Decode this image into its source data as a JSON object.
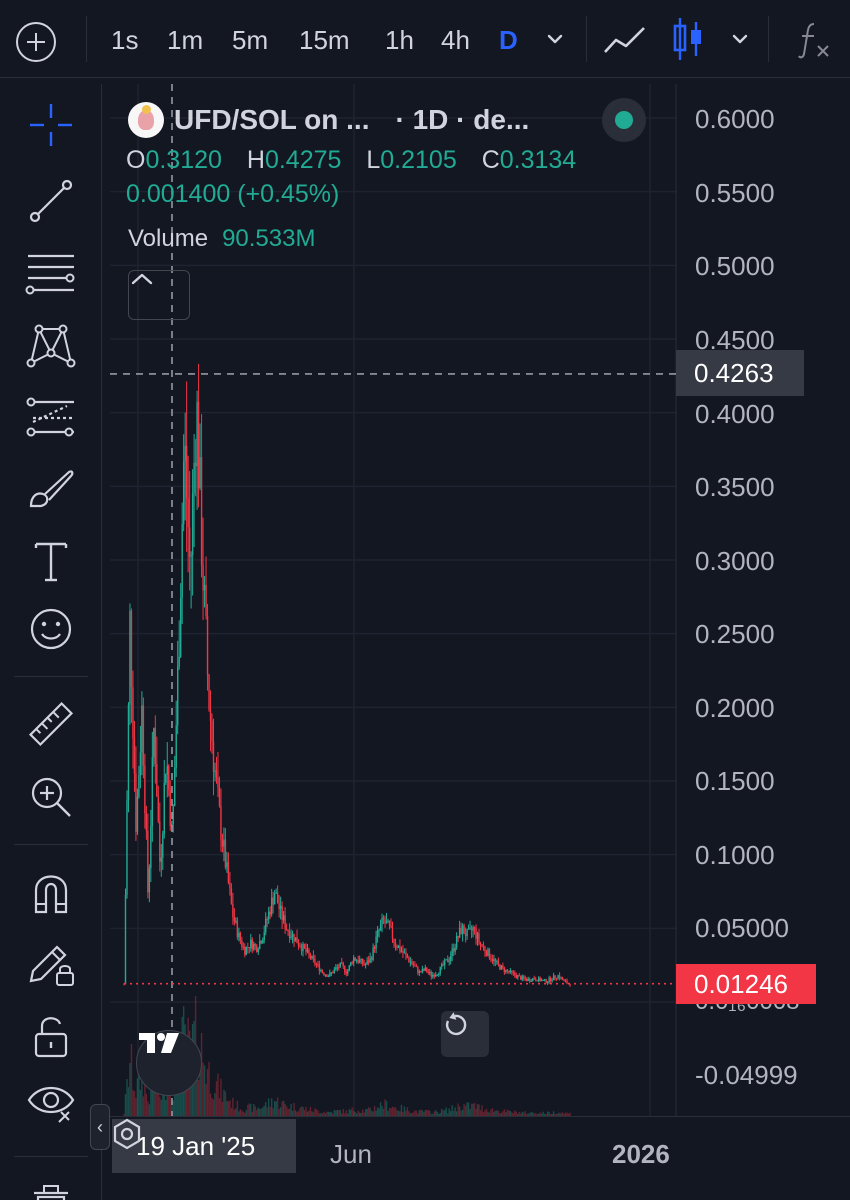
{
  "toolbar": {
    "timeframes": [
      "1s",
      "1m",
      "5m",
      "15m",
      "1h",
      "4h",
      "D"
    ],
    "active_timeframe": "D"
  },
  "symbol": {
    "title": "UFD/SOL on ...",
    "interval_info": "· 1D · de...",
    "status_color": "#22ab94"
  },
  "ohlc": {
    "open_label": "O",
    "open": "0.3120",
    "high_label": "H",
    "high": "0.4275",
    "low_label": "L",
    "low": "0.2105",
    "close_label": "C",
    "close": "0.3134",
    "change": "0.001400 (+0.45%)"
  },
  "volume": {
    "label": "Volume",
    "value": "90.533M"
  },
  "price_axis": {
    "labels": [
      "0.6000",
      "0.5500",
      "0.5000",
      "0.4500",
      "0.4000",
      "0.3500",
      "0.3000",
      "0.2500",
      "0.2000",
      "0.1500",
      "0.1000",
      "0.05000",
      "-0.04999"
    ],
    "crosshair_price": "0.4263",
    "last_price": "0.01246",
    "last_price_under": "0.0₁₆0008"
  },
  "time_axis": {
    "crosshair_date": "19 Jan '25",
    "labels": [
      "Jun",
      "2026"
    ]
  },
  "colors": {
    "up": "#22ab94",
    "down": "#f23645",
    "accent": "#2962ff",
    "background": "#131722"
  },
  "icons": [
    "add-icon",
    "chevron-down-icon",
    "line-chart-icon",
    "candles-icon",
    "indicators-icon",
    "crosshair-icon",
    "trend-line-icon",
    "fib-icon",
    "pattern-icon",
    "projection-icon",
    "brush-icon",
    "text-icon",
    "emoji-icon",
    "ruler-icon",
    "zoom-in-icon",
    "magnet-icon",
    "pencil-lock-icon",
    "lock-icon",
    "eye-icon",
    "trash-icon",
    "reset-icon",
    "settings-icon"
  ],
  "chart_data": {
    "type": "candlestick",
    "y_range": [
      -0.075,
      0.62
    ],
    "crosshair": {
      "date": "19 Jan '25",
      "price": 0.4263
    },
    "last_price": 0.01246,
    "ohlc_at_crosshair": {
      "open": 0.312,
      "high": 0.4275,
      "low": 0.2105,
      "close": 0.3134
    },
    "volume_at_crosshair": "90.533M",
    "approx_price_path": [
      0.012,
      0.26,
      0.12,
      0.2,
      0.07,
      0.19,
      0.09,
      0.17,
      0.11,
      0.23,
      0.38,
      0.29,
      0.41,
      0.3,
      0.21,
      0.16,
      0.12,
      0.09,
      0.06,
      0.045,
      0.035,
      0.04,
      0.037,
      0.045,
      0.06,
      0.075,
      0.06,
      0.05,
      0.045,
      0.04,
      0.035,
      0.03,
      0.025,
      0.02,
      0.018,
      0.022,
      0.025,
      0.02,
      0.03,
      0.028,
      0.025,
      0.03,
      0.045,
      0.055,
      0.05,
      0.04,
      0.035,
      0.03,
      0.025,
      0.02,
      0.022,
      0.018,
      0.02,
      0.025,
      0.03,
      0.04,
      0.05,
      0.045,
      0.05,
      0.04,
      0.035,
      0.03,
      0.025,
      0.022,
      0.02,
      0.018,
      0.016,
      0.015,
      0.016,
      0.015,
      0.014,
      0.016,
      0.018,
      0.014,
      0.012
    ]
  }
}
